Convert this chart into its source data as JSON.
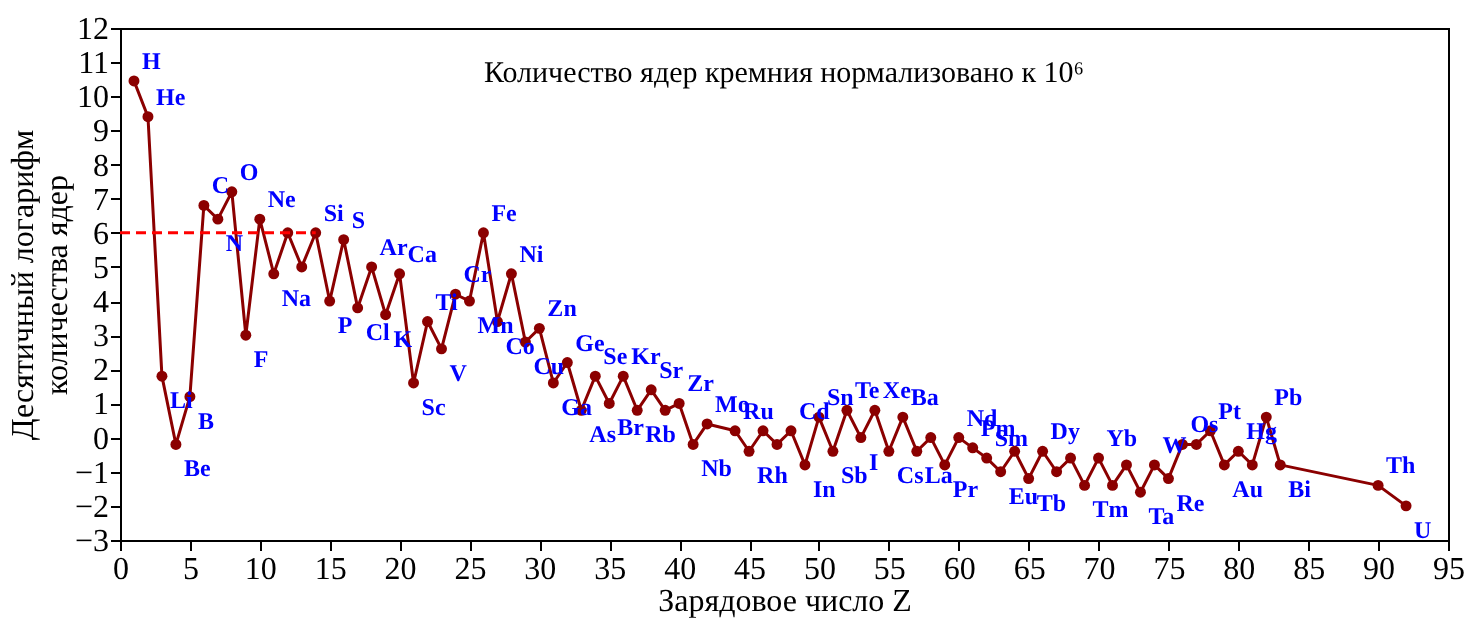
{
  "chart_data": {
    "type": "line",
    "title": "Количество ядер кремния нормализовано к 10⁶",
    "xlabel": "Зарядовое число Z",
    "ylabel": "Десятичный логарифм\nколичества ядер",
    "xlim": [
      0,
      95
    ],
    "xticks": [
      0,
      5,
      10,
      15,
      20,
      25,
      30,
      35,
      40,
      45,
      50,
      55,
      60,
      65,
      70,
      75,
      80,
      85,
      90,
      95
    ],
    "ylim": [
      -3,
      12
    ],
    "yticks": [
      -3,
      -2,
      -1,
      0,
      1,
      2,
      3,
      4,
      5,
      6,
      7,
      8,
      9,
      10,
      11,
      12
    ],
    "grid": false,
    "marker": "circle",
    "series": [
      {
        "color": "#8b0000",
        "x": [
          1,
          2,
          3,
          4,
          5,
          6,
          7,
          8,
          9,
          10,
          11,
          12,
          13,
          14,
          15,
          16,
          17,
          18,
          19,
          20,
          21,
          22,
          23,
          24,
          25,
          26,
          27,
          28,
          29,
          30,
          31,
          32,
          33,
          34,
          35,
          36,
          37,
          38,
          39,
          40,
          41,
          42,
          44,
          45,
          46,
          47,
          48,
          49,
          50,
          51,
          52,
          53,
          54,
          55,
          56,
          57,
          58,
          59,
          60,
          61,
          62,
          63,
          64,
          65,
          66,
          67,
          68,
          69,
          70,
          71,
          72,
          73,
          74,
          75,
          76,
          77,
          78,
          79,
          80,
          81,
          82,
          83,
          90,
          92
        ],
        "values": [
          10.45,
          9.4,
          1.8,
          -0.2,
          1.2,
          6.8,
          6.4,
          7.2,
          3.0,
          6.4,
          4.8,
          6.0,
          5.0,
          6.0,
          4.0,
          5.8,
          3.8,
          5.0,
          3.6,
          4.8,
          1.6,
          3.4,
          2.6,
          4.2,
          4.0,
          6.0,
          3.4,
          4.8,
          2.8,
          3.2,
          1.6,
          2.2,
          0.8,
          1.8,
          1.0,
          1.8,
          0.8,
          1.4,
          0.8,
          1.0,
          -0.2,
          0.4,
          0.2,
          -0.4,
          0.2,
          -0.2,
          0.2,
          -0.8,
          0.6,
          -0.4,
          0.8,
          0.0,
          0.8,
          -0.4,
          0.6,
          -0.4,
          0.0,
          -0.8,
          0.0,
          -0.3,
          -0.6,
          -1.0,
          -0.4,
          -1.2,
          -0.4,
          -1.0,
          -0.6,
          -1.4,
          -0.6,
          -1.4,
          -0.8,
          -1.6,
          -0.8,
          -1.2,
          -0.2,
          -0.2,
          0.2,
          -0.8,
          -0.4,
          -0.8,
          0.6,
          -0.8,
          -1.4,
          -2.0
        ],
        "value_labels": [
          "H",
          "He",
          "Li",
          "Be",
          "B",
          "C",
          "N",
          "O",
          "F",
          "Ne",
          "Na",
          null,
          null,
          "Si",
          "P",
          "S",
          "Cl",
          "Ar",
          "K",
          "Ca",
          "Sc",
          "Ti",
          "V",
          "Cr",
          "Mn",
          "Fe",
          "Co",
          "Ni",
          "Cu",
          "Zn",
          "Ga",
          "Ge",
          "As",
          "Se",
          "Br",
          "Kr",
          "Rb",
          "Sr",
          null,
          "Zr",
          "Nb",
          "Mo",
          "Ru",
          "Rh",
          null,
          null,
          "Cd",
          "In",
          "Sn",
          "Sb",
          "Te",
          "I",
          "Xe",
          "Cs",
          "Ba",
          "La",
          null,
          "Pr",
          "Nd",
          "Pm",
          "Sm",
          "Eu",
          null,
          "Tb",
          "Dy",
          null,
          null,
          "Tm",
          "Yb",
          null,
          null,
          "Ta",
          "W",
          "Re",
          "Os",
          null,
          "Pt",
          "Au",
          "Hg",
          null,
          "Pb",
          "Bi",
          "Th",
          "U"
        ]
      },
      {
        "color": "#ff0000",
        "x": [
          0,
          14
        ],
        "values": [
          6,
          6
        ],
        "marker": "none",
        "line_style": "dashed"
      }
    ]
  }
}
